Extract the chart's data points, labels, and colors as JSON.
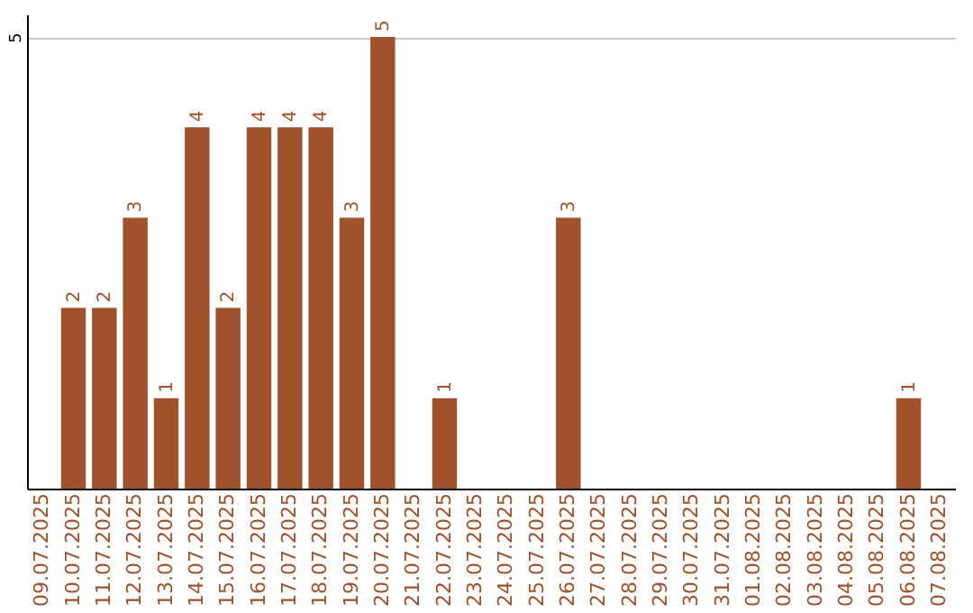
{
  "chart_data": {
    "type": "bar",
    "categories": [
      "09.07.2025",
      "10.07.2025",
      "11.07.2025",
      "12.07.2025",
      "13.07.2025",
      "14.07.2025",
      "15.07.2025",
      "16.07.2025",
      "17.07.2025",
      "18.07.2025",
      "19.07.2025",
      "20.07.2025",
      "21.07.2025",
      "22.07.2025",
      "23.07.2025",
      "24.07.2025",
      "25.07.2025",
      "26.07.2025",
      "27.07.2025",
      "28.07.2025",
      "29.07.2025",
      "30.07.2025",
      "31.07.2025",
      "01.08.2025",
      "02.08.2025",
      "03.08.2025",
      "04.08.2025",
      "05.08.2025",
      "06.08.2025",
      "07.08.2025"
    ],
    "values": [
      0,
      2,
      2,
      3,
      1,
      4,
      2,
      4,
      4,
      4,
      3,
      5,
      0,
      1,
      0,
      0,
      0,
      3,
      0,
      0,
      0,
      0,
      0,
      0,
      0,
      0,
      0,
      0,
      1,
      0
    ],
    "value_labels": [
      null,
      "2",
      "2",
      "3",
      "1",
      "4",
      "2",
      "4",
      "4",
      "4",
      "3",
      "5",
      null,
      "1",
      null,
      null,
      null,
      "3",
      null,
      null,
      null,
      null,
      null,
      null,
      null,
      null,
      null,
      null,
      "1",
      null
    ],
    "color": "#a0522d",
    "ylim": [
      0,
      5.25
    ],
    "yticks": [
      5
    ],
    "grid": "y"
  }
}
